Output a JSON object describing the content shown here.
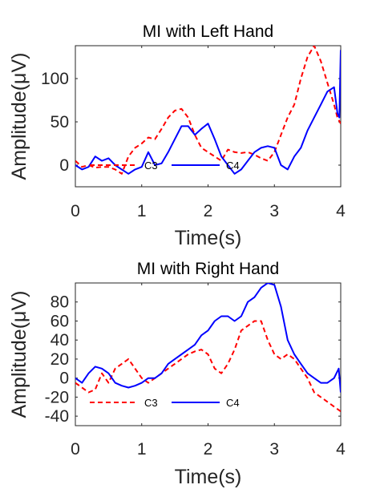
{
  "chart_data": [
    {
      "type": "line",
      "title": "MI with Left Hand",
      "xlabel": "Time(s)",
      "ylabel": "Amplitude(μV)",
      "xlim": [
        0,
        4
      ],
      "ylim": [
        -25,
        138
      ],
      "xticks": [
        "0",
        "1",
        "2",
        "3",
        "4"
      ],
      "xtick_values": [
        0,
        1,
        2,
        3,
        4
      ],
      "yticks": [
        "0",
        "50",
        "100"
      ],
      "ytick_values": [
        0,
        50,
        100
      ],
      "grid": false,
      "legend": "bottom-center",
      "series": [
        {
          "name": "C3",
          "color": "#ff0000",
          "style": "dashed",
          "x": [
            0,
            0.1,
            0.2,
            0.3,
            0.4,
            0.5,
            0.6,
            0.7,
            0.8,
            0.9,
            1.0,
            1.1,
            1.2,
            1.3,
            1.4,
            1.5,
            1.6,
            1.7,
            1.8,
            1.9,
            2.0,
            2.1,
            2.2,
            2.3,
            2.4,
            2.5,
            2.6,
            2.7,
            2.8,
            2.9,
            3.0,
            3.1,
            3.2,
            3.3,
            3.4,
            3.5,
            3.6,
            3.7,
            3.8,
            3.9,
            3.95,
            4.0
          ],
          "values": [
            5,
            -2,
            0,
            -3,
            -2,
            -2,
            -5,
            -10,
            10,
            20,
            25,
            32,
            30,
            42,
            55,
            63,
            65,
            55,
            35,
            20,
            15,
            10,
            5,
            18,
            15,
            14,
            15,
            12,
            8,
            5,
            15,
            35,
            55,
            70,
            100,
            125,
            138,
            120,
            95,
            70,
            55,
            48
          ]
        },
        {
          "name": "C4",
          "color": "#0000ff",
          "style": "solid",
          "x": [
            0,
            0.1,
            0.2,
            0.3,
            0.4,
            0.5,
            0.6,
            0.7,
            0.8,
            0.9,
            1.0,
            1.1,
            1.2,
            1.3,
            1.4,
            1.5,
            1.6,
            1.7,
            1.8,
            1.9,
            2.0,
            2.1,
            2.2,
            2.3,
            2.4,
            2.5,
            2.6,
            2.7,
            2.8,
            2.9,
            3.0,
            3.1,
            3.2,
            3.3,
            3.4,
            3.5,
            3.6,
            3.7,
            3.8,
            3.9,
            3.95,
            3.98,
            4.0
          ],
          "values": [
            0,
            -5,
            -2,
            10,
            5,
            8,
            0,
            -5,
            -10,
            -5,
            -2,
            15,
            0,
            2,
            15,
            30,
            45,
            45,
            35,
            42,
            48,
            30,
            10,
            0,
            -10,
            -5,
            5,
            15,
            20,
            22,
            20,
            0,
            -5,
            10,
            20,
            40,
            55,
            70,
            85,
            90,
            60,
            55,
            133
          ]
        }
      ]
    },
    {
      "type": "line",
      "title": "MI with Right Hand",
      "xlabel": "Time(s)",
      "ylabel": "Amplitude(μV)",
      "xlim": [
        0,
        4
      ],
      "ylim": [
        -50,
        100
      ],
      "xticks": [
        "0",
        "1",
        "2",
        "3",
        "4"
      ],
      "xtick_values": [
        0,
        1,
        2,
        3,
        4
      ],
      "yticks": [
        "-40",
        "-20",
        "0",
        "20",
        "40",
        "60",
        "80"
      ],
      "ytick_values": [
        -40,
        -20,
        0,
        20,
        40,
        60,
        80
      ],
      "grid": false,
      "legend": "bottom-center",
      "series": [
        {
          "name": "C3",
          "color": "#ff0000",
          "style": "dashed",
          "x": [
            0,
            0.1,
            0.2,
            0.3,
            0.4,
            0.5,
            0.6,
            0.7,
            0.8,
            0.9,
            1.0,
            1.1,
            1.2,
            1.3,
            1.4,
            1.5,
            1.6,
            1.7,
            1.8,
            1.9,
            2.0,
            2.1,
            2.2,
            2.3,
            2.4,
            2.5,
            2.6,
            2.7,
            2.8,
            2.9,
            3.0,
            3.1,
            3.2,
            3.3,
            3.4,
            3.5,
            3.6,
            3.7,
            3.8,
            3.9,
            4.0
          ],
          "values": [
            -5,
            -10,
            -15,
            -12,
            5,
            -5,
            10,
            15,
            20,
            10,
            0,
            -5,
            0,
            5,
            10,
            15,
            20,
            25,
            28,
            30,
            25,
            10,
            5,
            15,
            30,
            50,
            55,
            60,
            60,
            40,
            25,
            20,
            25,
            20,
            10,
            0,
            -15,
            -20,
            -25,
            -30,
            -35
          ]
        },
        {
          "name": "C4",
          "color": "#0000ff",
          "style": "solid",
          "x": [
            0,
            0.1,
            0.2,
            0.3,
            0.4,
            0.5,
            0.6,
            0.7,
            0.8,
            0.9,
            1.0,
            1.1,
            1.2,
            1.3,
            1.4,
            1.5,
            1.6,
            1.7,
            1.8,
            1.9,
            2.0,
            2.1,
            2.2,
            2.3,
            2.4,
            2.5,
            2.6,
            2.7,
            2.8,
            2.9,
            3.0,
            3.1,
            3.2,
            3.3,
            3.4,
            3.5,
            3.6,
            3.7,
            3.8,
            3.9,
            3.97,
            4.0
          ],
          "values": [
            0,
            -5,
            5,
            12,
            10,
            5,
            -5,
            -8,
            -10,
            -8,
            -5,
            0,
            0,
            5,
            15,
            20,
            25,
            30,
            35,
            45,
            50,
            60,
            65,
            65,
            60,
            65,
            80,
            85,
            95,
            100,
            98,
            75,
            40,
            25,
            15,
            5,
            0,
            -5,
            -5,
            0,
            10,
            -15
          ]
        }
      ]
    }
  ]
}
